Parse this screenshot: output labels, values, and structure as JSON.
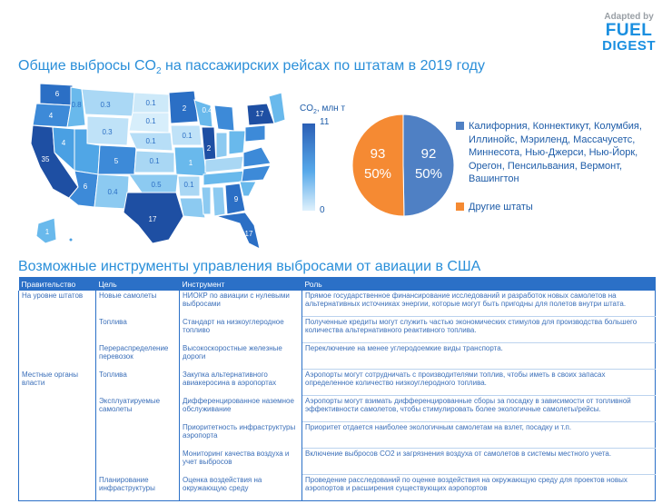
{
  "logo": {
    "adapted": "Adapted by",
    "line1": "FUEL",
    "line2": "DIGEST"
  },
  "title1": {
    "prefix": "Общие выбросы CO",
    "sub": "2",
    "suffix": " на пассажирских рейсах по штатам в 2019 году"
  },
  "title2": "Возможные инструменты управления выбросами от авиации в США",
  "scale": {
    "label": "CO",
    "label_sub": "2",
    "label_suffix": ", млн т",
    "max": "11",
    "min": "0"
  },
  "map_labels": [
    "6",
    "0.3",
    "0.1",
    "2",
    "0.3",
    "0.1",
    "0.8",
    "4",
    "0.1",
    "0.1",
    "0.4",
    "35",
    "5",
    "6",
    "4",
    "0.1",
    "1",
    "0.5",
    "17",
    "2",
    "9",
    "17",
    "17",
    "0.4",
    "0.1",
    "1"
  ],
  "chart_data": {
    "type": "pie",
    "title": "Общие выбросы CO2 на пассажирских рейсах по штатам в 2019 году",
    "units": "млн т CO2",
    "slices": [
      {
        "name": "Калифорния, Коннектикут, Колумбия, Иллинойс, Мэриленд, Массачусетс, Миннесота, Нью-Джерси, Нью-Йорк, Орегон, Пенсильвания, Вермонт, Вашингтон",
        "value": 92,
        "percent": "50%",
        "label": "92",
        "pct_label": "50%",
        "color": "#4f80c4"
      },
      {
        "name": "Другие штаты",
        "value": 93,
        "percent": "50%",
        "label": "93",
        "pct_label": "50%",
        "color": "#f58a33"
      }
    ]
  },
  "table": {
    "headers": [
      "Правительство",
      "Цель",
      "Инструмент",
      "Роль"
    ],
    "rows": [
      [
        "На уровне штатов",
        "Новые самолеты",
        "НИОКР по авиации с нулевыми выбросами",
        "Прямое государственное финансирование исследований и разработок новых самолетов на альтернативных источниках энергии, которые могут быть пригодны для полетов внутри штата."
      ],
      [
        "",
        "Топлива",
        "Стандарт на низкоуглеродное топливо",
        "Полученные кредиты могут служить частью экономических стимулов для производства большего количества альтернативного реактивного топлива."
      ],
      [
        "",
        "Перераспределение перевозок",
        "Высокоскоростные железные дороги",
        "Переключение на менее углеродоемкие виды транспорта."
      ],
      [
        "Местные органы власти",
        "Топлива",
        "Закупка альтернативного авиакеросина в аэропортах",
        "Аэропорты могут сотрудничать с производителями топлив, чтобы иметь в своих запасах определенное количество низкоуглеродного топлива."
      ],
      [
        "",
        "Эксплуатируемые самолеты",
        "Дифференцированное наземное обслуживание",
        "Аэропорты могут взимать дифференцированные сборы за посадку в зависимости от топливной эффективности самолетов, чтобы стимулировать более экологичные самолеты/рейсы."
      ],
      [
        "",
        "",
        "Приоритетность инфраструктуры аэропорта",
        "Приоритет отдается наиболее экологичным самолетам на взлет, посадку и т.п."
      ],
      [
        "",
        "",
        "Мониторинг качества воздуха и учет выбросов",
        "Включение выбросов CO2 и загрязнения воздуха от самолетов в системы местного учета."
      ],
      [
        "",
        "Планирование инфраструктуры",
        "Оценка воздействия на окружающую среду",
        "Проведение расследований по оценке воздействия на окружающую среду для проектов новых аэропортов и расширения существующих аэропортов"
      ]
    ]
  }
}
